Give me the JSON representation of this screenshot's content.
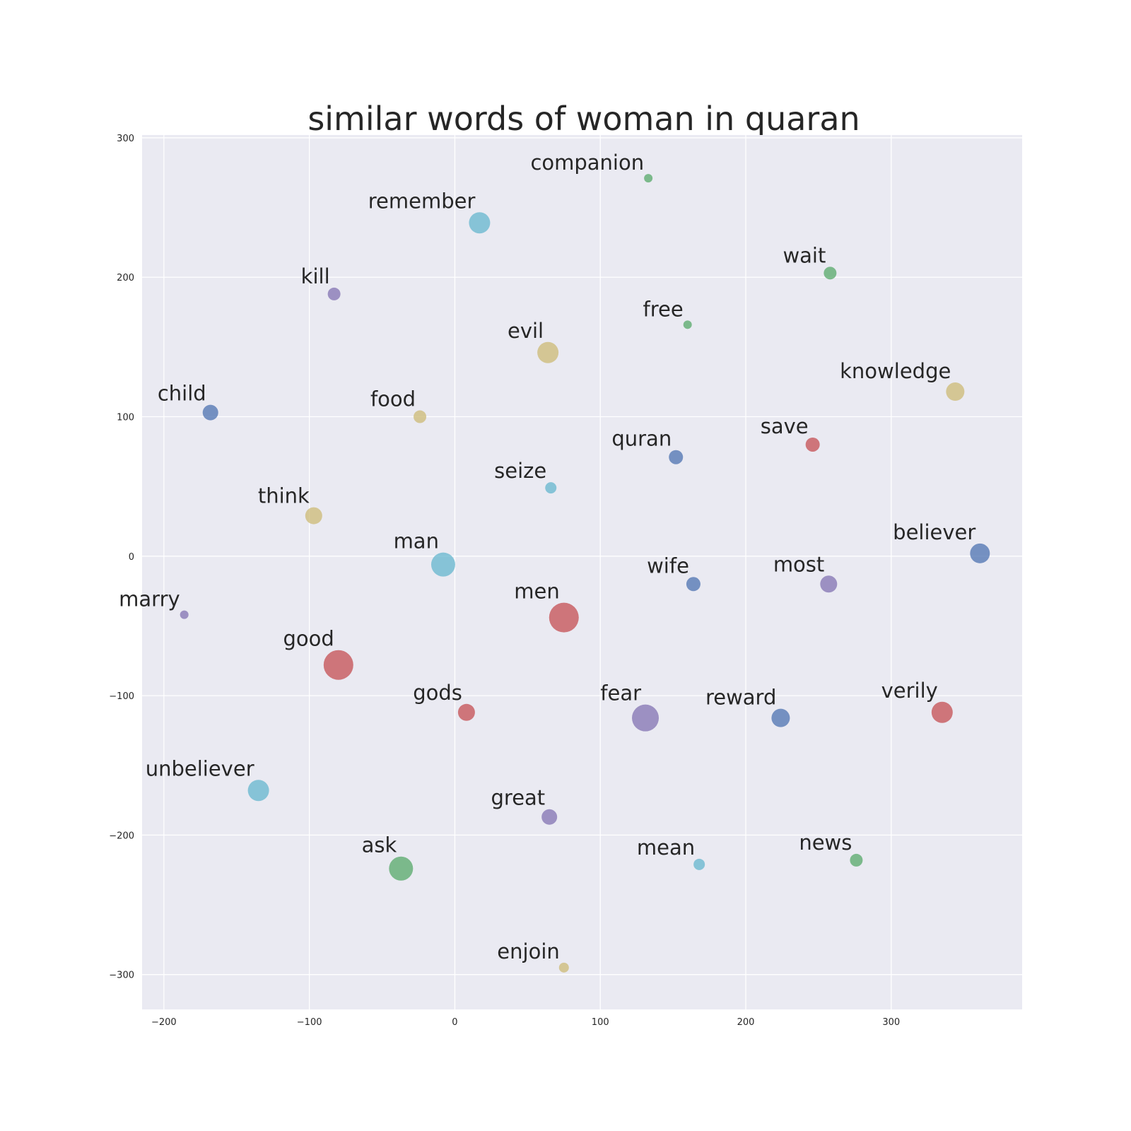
{
  "chart_data": {
    "type": "scatter",
    "title": "similar words of woman in quaran",
    "xlabel": "",
    "ylabel": "",
    "xlim": [
      -215,
      390
    ],
    "ylim": [
      -325,
      302
    ],
    "xticks": [
      -200,
      -100,
      0,
      100,
      200,
      300
    ],
    "yticks": [
      -300,
      -200,
      -100,
      0,
      100,
      200,
      300
    ],
    "grid": true,
    "background": "#eaeaf2",
    "palette": {
      "blue": "#4c72b0",
      "green": "#55a868",
      "red": "#c44e52",
      "purple": "#8172b2",
      "yellow": "#ccb974",
      "cyan": "#64b5cd"
    },
    "points": [
      {
        "label": "companion",
        "x": 133,
        "y": 271,
        "size": 6,
        "color": "green"
      },
      {
        "label": "remember",
        "x": 17,
        "y": 239,
        "size": 15,
        "color": "cyan"
      },
      {
        "label": "wait",
        "x": 258,
        "y": 203,
        "size": 9,
        "color": "green"
      },
      {
        "label": "kill",
        "x": -83,
        "y": 188,
        "size": 9,
        "color": "purple"
      },
      {
        "label": "free",
        "x": 160,
        "y": 166,
        "size": 6,
        "color": "green"
      },
      {
        "label": "evil",
        "x": 64,
        "y": 146,
        "size": 15,
        "color": "yellow"
      },
      {
        "label": "knowledge",
        "x": 344,
        "y": 118,
        "size": 13,
        "color": "yellow"
      },
      {
        "label": "child",
        "x": -168,
        "y": 103,
        "size": 11,
        "color": "blue"
      },
      {
        "label": "food",
        "x": -24,
        "y": 100,
        "size": 9,
        "color": "yellow"
      },
      {
        "label": "save",
        "x": 246,
        "y": 80,
        "size": 10,
        "color": "red"
      },
      {
        "label": "quran",
        "x": 152,
        "y": 71,
        "size": 10,
        "color": "blue"
      },
      {
        "label": "seize",
        "x": 66,
        "y": 49,
        "size": 8,
        "color": "cyan"
      },
      {
        "label": "think",
        "x": -97,
        "y": 29,
        "size": 12,
        "color": "yellow"
      },
      {
        "label": "believer",
        "x": 361,
        "y": 2,
        "size": 14,
        "color": "blue"
      },
      {
        "label": "man",
        "x": -8,
        "y": -6,
        "size": 17,
        "color": "cyan"
      },
      {
        "label": "wife",
        "x": 164,
        "y": -20,
        "size": 10,
        "color": "blue"
      },
      {
        "label": "most",
        "x": 257,
        "y": -20,
        "size": 12,
        "color": "purple"
      },
      {
        "label": "marry",
        "x": -186,
        "y": -42,
        "size": 6,
        "color": "purple"
      },
      {
        "label": "men",
        "x": 75,
        "y": -44,
        "size": 21,
        "color": "red"
      },
      {
        "label": "good",
        "x": -80,
        "y": -78,
        "size": 21,
        "color": "red"
      },
      {
        "label": "gods",
        "x": 8,
        "y": -112,
        "size": 12,
        "color": "red"
      },
      {
        "label": "fear",
        "x": 131,
        "y": -116,
        "size": 19,
        "color": "purple"
      },
      {
        "label": "reward",
        "x": 224,
        "y": -116,
        "size": 13,
        "color": "blue"
      },
      {
        "label": "verily",
        "x": 335,
        "y": -112,
        "size": 15,
        "color": "red"
      },
      {
        "label": "unbeliever",
        "x": -135,
        "y": -168,
        "size": 15,
        "color": "cyan"
      },
      {
        "label": "great",
        "x": 65,
        "y": -187,
        "size": 11,
        "color": "purple"
      },
      {
        "label": "ask",
        "x": -37,
        "y": -224,
        "size": 17,
        "color": "green"
      },
      {
        "label": "mean",
        "x": 168,
        "y": -221,
        "size": 8,
        "color": "cyan"
      },
      {
        "label": "news",
        "x": 276,
        "y": -218,
        "size": 9,
        "color": "green"
      },
      {
        "label": "enjoin",
        "x": 75,
        "y": -295,
        "size": 7,
        "color": "yellow"
      }
    ]
  }
}
